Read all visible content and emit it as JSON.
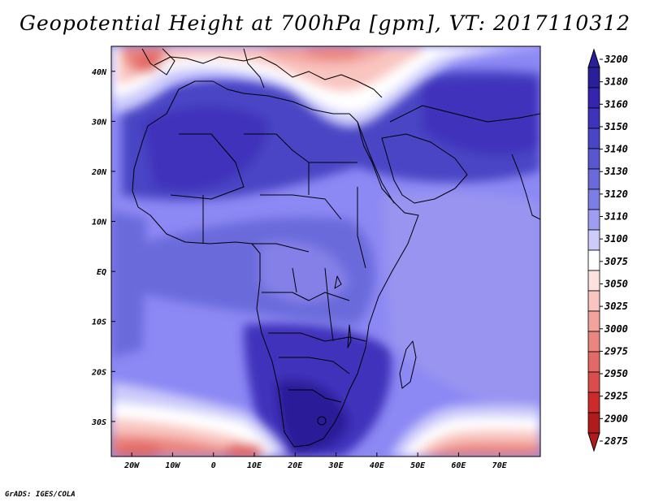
{
  "title": "Geopotential Height at 700hPa [gpm], VT: 2017110312",
  "credit": "GrADS: IGES/COLA",
  "map": {
    "lon_range": [
      -25,
      80
    ],
    "lat_range": [
      -37,
      45
    ],
    "lon_ticks": [
      {
        "lon": -20,
        "label": "20W"
      },
      {
        "lon": -10,
        "label": "10W"
      },
      {
        "lon": 0,
        "label": "0"
      },
      {
        "lon": 10,
        "label": "10E"
      },
      {
        "lon": 20,
        "label": "20E"
      },
      {
        "lon": 30,
        "label": "30E"
      },
      {
        "lon": 40,
        "label": "40E"
      },
      {
        "lon": 50,
        "label": "50E"
      },
      {
        "lon": 60,
        "label": "60E"
      },
      {
        "lon": 70,
        "label": "70E"
      }
    ],
    "lat_ticks": [
      {
        "lat": 40,
        "label": "40N"
      },
      {
        "lat": 30,
        "label": "30N"
      },
      {
        "lat": 20,
        "label": "20N"
      },
      {
        "lat": 10,
        "label": "10N"
      },
      {
        "lat": 0,
        "label": "EQ"
      },
      {
        "lat": -10,
        "label": "10S"
      },
      {
        "lat": -20,
        "label": "20S"
      },
      {
        "lat": -30,
        "label": "30S"
      }
    ],
    "background_color": "#8c88f4"
  },
  "colorbar": {
    "levels": [
      "3200",
      "3180",
      "3160",
      "3150",
      "3140",
      "3130",
      "3120",
      "3110",
      "3100",
      "3075",
      "3050",
      "3025",
      "3000",
      "2975",
      "2950",
      "2925",
      "2900",
      "2875"
    ],
    "colors": [
      "#2a1f99",
      "#3524ad",
      "#3f33bb",
      "#4a45c4",
      "#5a56d0",
      "#6a6adb",
      "#7d7de6",
      "#9f9df2",
      "#cccbfa",
      "#ffffff",
      "#fde1de",
      "#f9c5c0",
      "#f2a39c",
      "#ea8580",
      "#e26966",
      "#db4d4d",
      "#cc2b2b",
      "#b01c1c"
    ]
  }
}
